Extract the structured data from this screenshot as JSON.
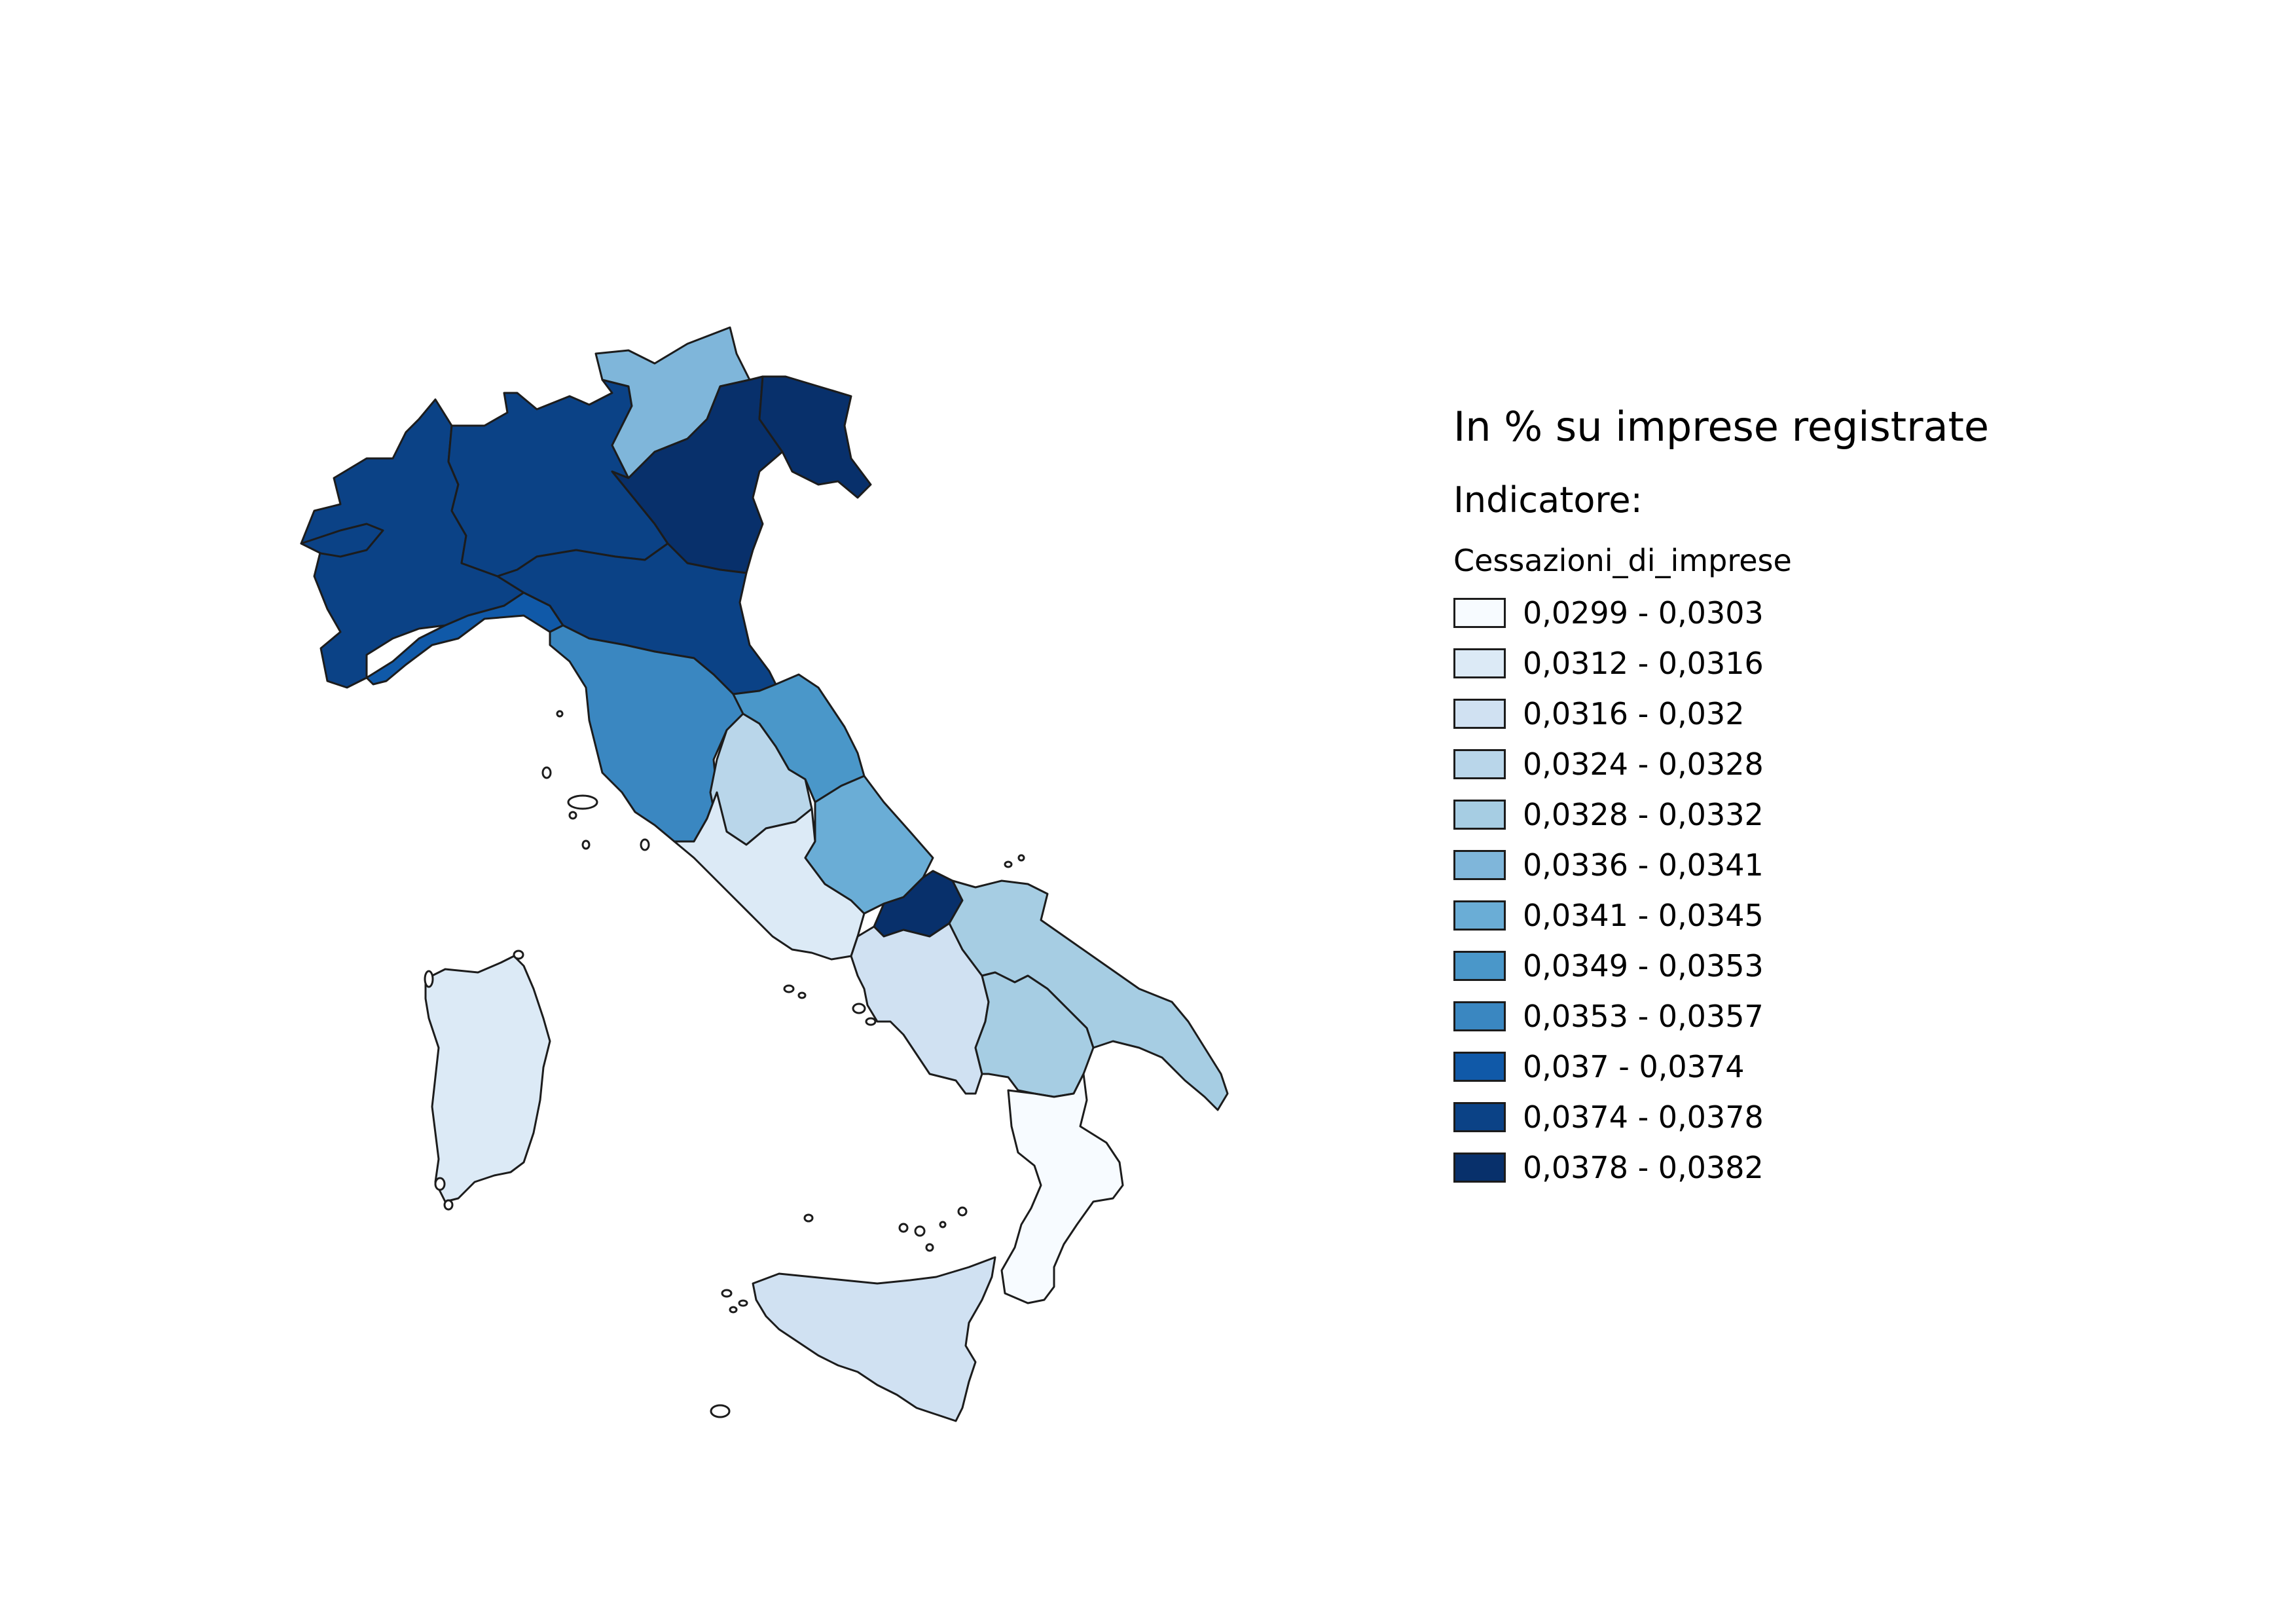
{
  "legend": {
    "title": "In % su imprese registrate",
    "subtitle": "Indicatore:",
    "field": "Cessazioni_di_imprese",
    "classes": [
      {
        "label": "0,0299 - 0,0303",
        "color": "#f7fbff"
      },
      {
        "label": "0,0312 - 0,0316",
        "color": "#dceaf6"
      },
      {
        "label": "0,0316 - 0,032",
        "color": "#d0e1f2"
      },
      {
        "label": "0,0324 - 0,0328",
        "color": "#b9d6ea"
      },
      {
        "label": "0,0328 - 0,0332",
        "color": "#a6cde3"
      },
      {
        "label": "0,0336 - 0,0341",
        "color": "#7fb6da"
      },
      {
        "label": "0,0341 - 0,0345",
        "color": "#6aadd6"
      },
      {
        "label": "0,0349 - 0,0353",
        "color": "#4a97c9"
      },
      {
        "label": "0,0353 - 0,0357",
        "color": "#3a87c1"
      },
      {
        "label": "0,037 - 0,0374",
        "color": "#1059a8"
      },
      {
        "label": "0,0374 - 0,0378",
        "color": "#0b4286"
      },
      {
        "label": "0,0378 - 0,0382",
        "color": "#08306b"
      }
    ]
  },
  "regions": [
    {
      "id": "piemonte",
      "class": 10
    },
    {
      "id": "valle-d-aosta",
      "class": 10
    },
    {
      "id": "lombardia",
      "class": 10
    },
    {
      "id": "trentino-alto-adige",
      "class": 5
    },
    {
      "id": "veneto",
      "class": 11
    },
    {
      "id": "friuli-venezia-giulia",
      "class": 11
    },
    {
      "id": "liguria",
      "class": 9
    },
    {
      "id": "emilia-romagna",
      "class": 10
    },
    {
      "id": "toscana",
      "class": 8
    },
    {
      "id": "umbria",
      "class": 3
    },
    {
      "id": "marche",
      "class": 7
    },
    {
      "id": "lazio",
      "class": 1
    },
    {
      "id": "abruzzo",
      "class": 6
    },
    {
      "id": "molise",
      "class": 11
    },
    {
      "id": "campania",
      "class": 2
    },
    {
      "id": "puglia",
      "class": 4
    },
    {
      "id": "basilicata",
      "class": 4
    },
    {
      "id": "calabria",
      "class": 0
    },
    {
      "id": "sicilia",
      "class": 2
    },
    {
      "id": "sardegna",
      "class": 1
    }
  ]
}
